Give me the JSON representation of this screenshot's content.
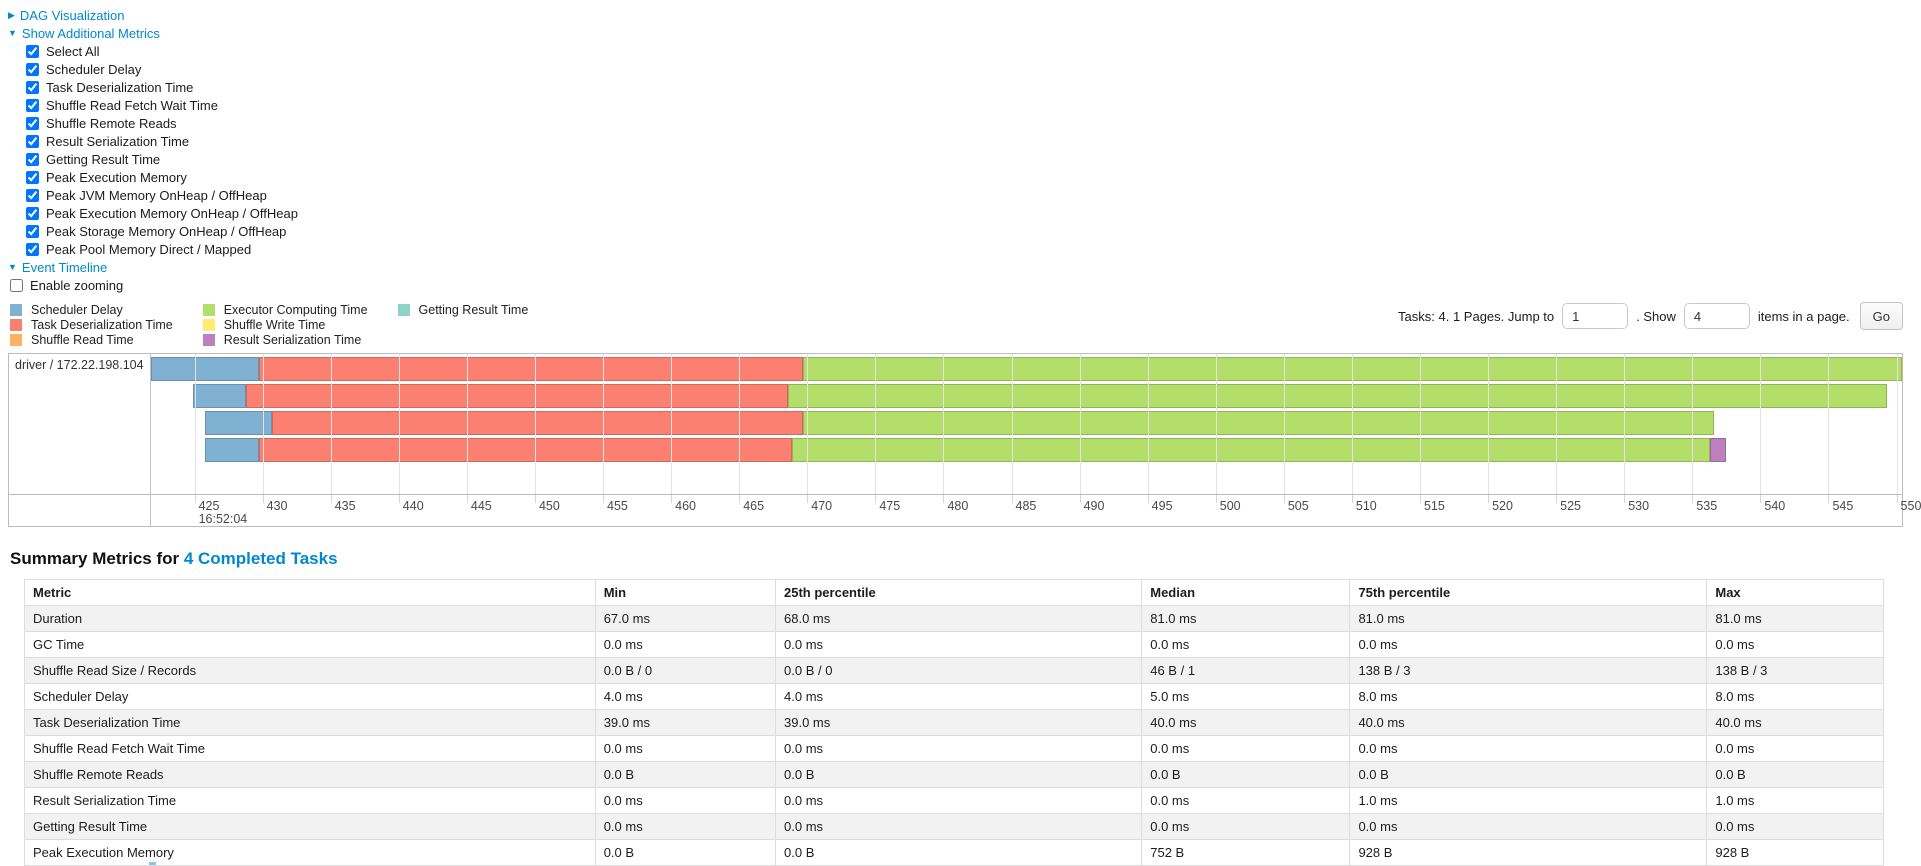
{
  "colors": {
    "link": "#0088cc",
    "scheduler_delay": "#80B1D3",
    "task_deserialization": "#FB8072",
    "shuffle_read": "#FDB462",
    "executor_computing": "#B3DE69",
    "shuffle_write": "#FFED6F",
    "result_serialization": "#BC80BD",
    "getting_result": "#8DD3C7"
  },
  "toggles": {
    "dag": {
      "label": "DAG Visualization",
      "arrow": "▶"
    },
    "metrics": {
      "label": "Show Additional Metrics",
      "arrow": "▼"
    },
    "timeline": {
      "label": "Event Timeline",
      "arrow": "▼"
    }
  },
  "metrics_panel": {
    "items": [
      {
        "label": "Select All",
        "checked": true
      },
      {
        "label": "Scheduler Delay",
        "checked": true
      },
      {
        "label": "Task Deserialization Time",
        "checked": true
      },
      {
        "label": "Shuffle Read Fetch Wait Time",
        "checked": true
      },
      {
        "label": "Shuffle Remote Reads",
        "checked": true
      },
      {
        "label": "Result Serialization Time",
        "checked": true
      },
      {
        "label": "Getting Result Time",
        "checked": true
      },
      {
        "label": "Peak Execution Memory",
        "checked": true
      },
      {
        "label": "Peak JVM Memory OnHeap / OffHeap",
        "checked": true
      },
      {
        "label": "Peak Execution Memory OnHeap / OffHeap",
        "checked": true
      },
      {
        "label": "Peak Storage Memory OnHeap / OffHeap",
        "checked": true
      },
      {
        "label": "Peak Pool Memory Direct / Mapped",
        "checked": true
      }
    ]
  },
  "enable_zooming": {
    "label": "Enable zooming",
    "checked": false
  },
  "legend": {
    "columns": [
      [
        {
          "label": "Scheduler Delay",
          "key": "scheduler_delay"
        },
        {
          "label": "Task Deserialization Time",
          "key": "task_deserialization"
        },
        {
          "label": "Shuffle Read Time",
          "key": "shuffle_read"
        }
      ],
      [
        {
          "label": "Executor Computing Time",
          "key": "executor_computing"
        },
        {
          "label": "Shuffle Write Time",
          "key": "shuffle_write"
        },
        {
          "label": "Result Serialization Time",
          "key": "result_serialization"
        }
      ],
      [
        {
          "label": "Getting Result Time",
          "key": "getting_result"
        }
      ]
    ]
  },
  "pagination": {
    "tasks_text": "Tasks: 4. 1 Pages. Jump to",
    "jump_value": "1",
    "show_text": ". Show",
    "show_value": "4",
    "items_text": "items in a page.",
    "go_label": "Go"
  },
  "chart_data": {
    "type": "timeline",
    "title": "Event Timeline",
    "executor_label": "driver / 172.22.198.104",
    "axis": {
      "min": 421.8,
      "max": 550.4,
      "tick_start": 425,
      "tick_end": 550,
      "tick_step": 5,
      "time_label": "16:52:04",
      "time_label_tick": 425
    },
    "tasks": [
      {
        "segments": [
          {
            "name": "scheduler_delay",
            "start": 421.8,
            "end": 429.7
          },
          {
            "name": "task_deserialization",
            "start": 429.7,
            "end": 469.7
          },
          {
            "name": "executor_computing",
            "start": 469.7,
            "end": 550.4
          }
        ]
      },
      {
        "segments": [
          {
            "name": "scheduler_delay",
            "start": 424.9,
            "end": 428.8
          },
          {
            "name": "task_deserialization",
            "start": 428.8,
            "end": 468.6
          },
          {
            "name": "executor_computing",
            "start": 468.6,
            "end": 549.3
          }
        ]
      },
      {
        "segments": [
          {
            "name": "scheduler_delay",
            "start": 425.8,
            "end": 430.7
          },
          {
            "name": "task_deserialization",
            "start": 430.7,
            "end": 469.7
          },
          {
            "name": "executor_computing",
            "start": 469.7,
            "end": 536.6
          }
        ]
      },
      {
        "segments": [
          {
            "name": "scheduler_delay",
            "start": 425.8,
            "end": 429.7
          },
          {
            "name": "task_deserialization",
            "start": 429.7,
            "end": 468.9
          },
          {
            "name": "executor_computing",
            "start": 468.9,
            "end": 536.3
          },
          {
            "name": "result_serialization",
            "start": 536.3,
            "end": 537.5
          }
        ]
      }
    ]
  },
  "summary": {
    "title_prefix": "Summary Metrics for ",
    "title_link": "4 Completed Tasks",
    "table": {
      "headers": [
        "Metric",
        "Min",
        "25th percentile",
        "Median",
        "75th percentile",
        "Max"
      ],
      "rows": [
        [
          "Duration",
          "67.0 ms",
          "68.0 ms",
          "81.0 ms",
          "81.0 ms",
          "81.0 ms"
        ],
        [
          "GC Time",
          "0.0 ms",
          "0.0 ms",
          "0.0 ms",
          "0.0 ms",
          "0.0 ms"
        ],
        [
          "Shuffle Read Size / Records",
          "0.0 B / 0",
          "0.0 B / 0",
          "46 B / 1",
          "138 B / 3",
          "138 B / 3"
        ],
        [
          "Scheduler Delay",
          "4.0 ms",
          "4.0 ms",
          "5.0 ms",
          "8.0 ms",
          "8.0 ms"
        ],
        [
          "Task Deserialization Time",
          "39.0 ms",
          "39.0 ms",
          "40.0 ms",
          "40.0 ms",
          "40.0 ms"
        ],
        [
          "Shuffle Read Fetch Wait Time",
          "0.0 ms",
          "0.0 ms",
          "0.0 ms",
          "0.0 ms",
          "0.0 ms"
        ],
        [
          "Shuffle Remote Reads",
          "0.0 B",
          "0.0 B",
          "0.0 B",
          "0.0 B",
          "0.0 B"
        ],
        [
          "Result Serialization Time",
          "0.0 ms",
          "0.0 ms",
          "0.0 ms",
          "1.0 ms",
          "1.0 ms"
        ],
        [
          "Getting Result Time",
          "0.0 ms",
          "0.0 ms",
          "0.0 ms",
          "0.0 ms",
          "0.0 ms"
        ],
        [
          "Peak Execution Memory",
          "0.0 B",
          "0.0 B",
          "752 B",
          "928 B",
          "928 B"
        ]
      ]
    }
  }
}
